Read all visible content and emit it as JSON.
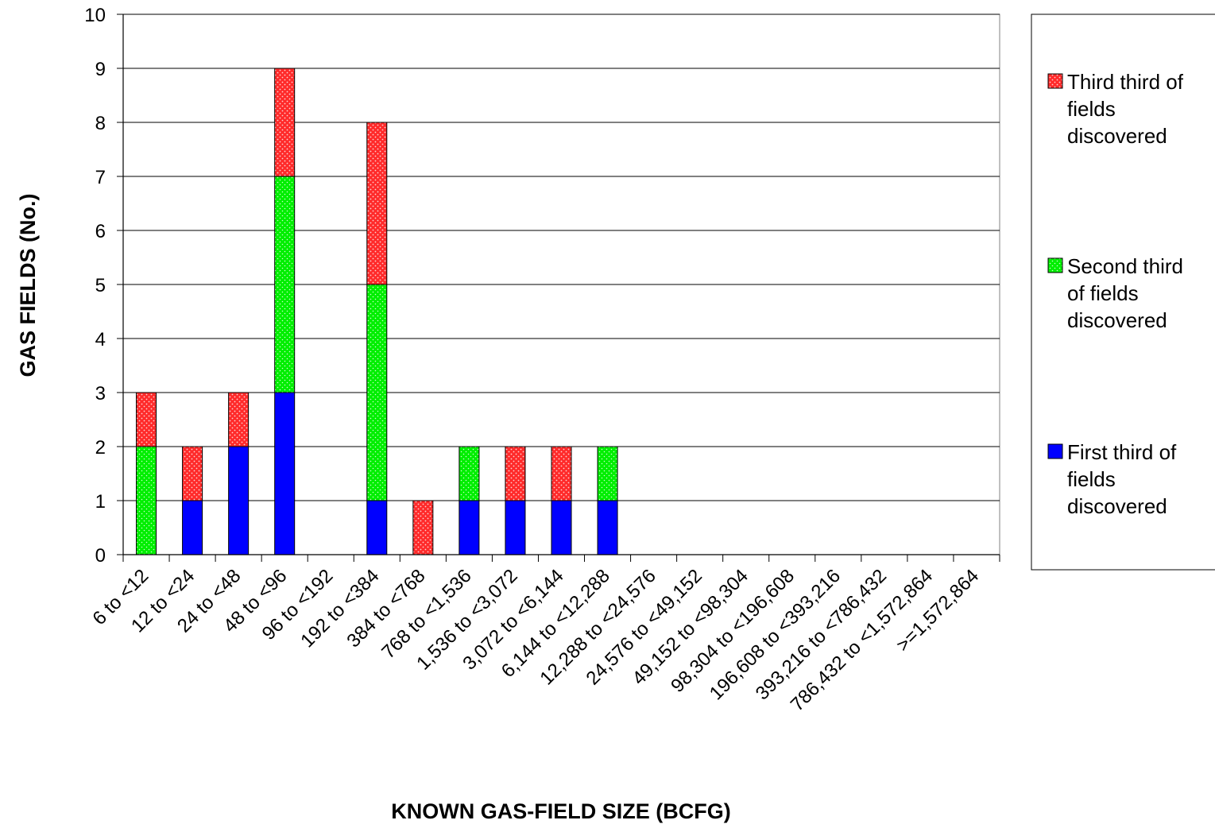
{
  "chart_data": {
    "type": "bar",
    "stacked": true,
    "title": "",
    "xlabel": "KNOWN GAS-FIELD SIZE (BCFG)",
    "ylabel": "GAS FIELDS (No.)",
    "ylim": [
      0,
      10
    ],
    "yticks": [
      0,
      1,
      2,
      3,
      4,
      5,
      6,
      7,
      8,
      9,
      10
    ],
    "grid": true,
    "legend_position": "right",
    "categories": [
      "6 to <12",
      "12 to <24",
      "24 to <48",
      "48 to <96",
      "96 to <192",
      "192 to <384",
      "384 to <768",
      "768 to <1,536",
      "1,536 to <3,072",
      "3,072 to <6,144",
      "6,144 to <12,288",
      "12,288 to <24,576",
      "24,576 to <49,152",
      "49,152 to <98,304",
      "98,304 to <196,608",
      "196,608 to <393,216",
      "393,216 to <786,432",
      "786,432 to <1,572,864",
      ">=1,572,864"
    ],
    "series": [
      {
        "name": "First third of fields discovered",
        "legend_lines": [
          "First third of",
          "fields",
          "discovered"
        ],
        "color": "#0000ff",
        "pattern": "solid",
        "values": [
          0,
          1,
          2,
          3,
          0,
          1,
          0,
          1,
          1,
          1,
          1,
          0,
          0,
          0,
          0,
          0,
          0,
          0,
          0
        ]
      },
      {
        "name": "Second third of fields discovered",
        "legend_lines": [
          "Second third",
          "of fields",
          "discovered"
        ],
        "color": "#00ee00",
        "pattern": "dotted",
        "values": [
          2,
          0,
          0,
          4,
          0,
          4,
          0,
          1,
          0,
          0,
          1,
          0,
          0,
          0,
          0,
          0,
          0,
          0,
          0
        ]
      },
      {
        "name": "Third third of fields discovered",
        "legend_lines": [
          "Third third of",
          "fields",
          "discovered"
        ],
        "color": "#ff2a2a",
        "pattern": "dotted",
        "values": [
          1,
          1,
          1,
          2,
          0,
          3,
          1,
          0,
          1,
          1,
          0,
          0,
          0,
          0,
          0,
          0,
          0,
          0,
          0
        ]
      }
    ]
  }
}
